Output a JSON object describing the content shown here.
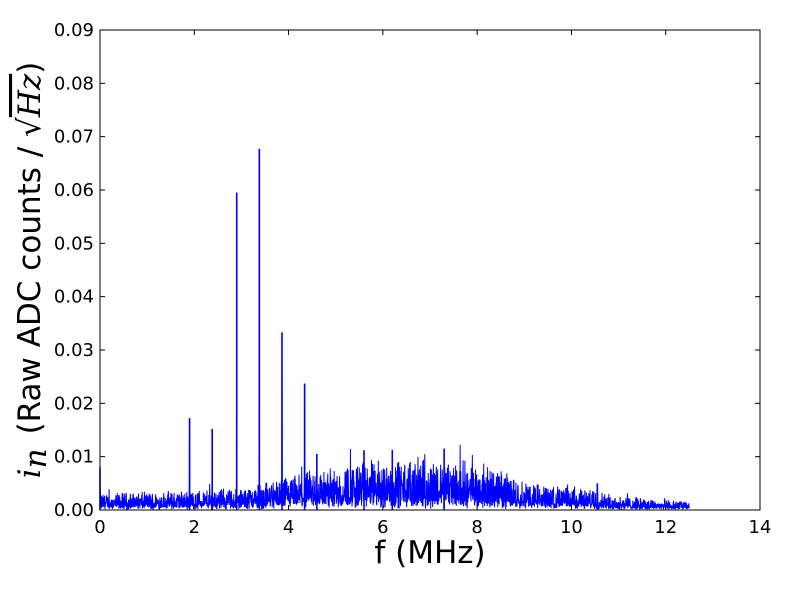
{
  "chart_data": {
    "type": "line",
    "title": "",
    "xlabel": "f (MHz)",
    "ylabel_prefix": "i",
    "ylabel_subscript": "n",
    "ylabel_text": "(Raw ADC counts / ",
    "ylabel_unit": "Hz",
    "ylabel_close": ")",
    "xlim": [
      0,
      14
    ],
    "ylim": [
      0,
      0.09
    ],
    "x_ticks": [
      "0",
      "2",
      "4",
      "6",
      "8",
      "10",
      "12",
      "14"
    ],
    "y_ticks": [
      "0.00",
      "0.01",
      "0.02",
      "0.03",
      "0.04",
      "0.05",
      "0.06",
      "0.07",
      "0.08",
      "0.09"
    ],
    "grid": false,
    "legend": "none",
    "series": [
      {
        "color": "#0000ff",
        "x_start": 0,
        "x_end": 12.5,
        "noise_envelope": [
          [
            0.0,
            0.003
          ],
          [
            0.3,
            0.003
          ],
          [
            1.0,
            0.0032
          ],
          [
            2.0,
            0.0035
          ],
          [
            3.0,
            0.004
          ],
          [
            4.0,
            0.006
          ],
          [
            5.0,
            0.008
          ],
          [
            6.0,
            0.009
          ],
          [
            7.0,
            0.009
          ],
          [
            8.0,
            0.0085
          ],
          [
            8.5,
            0.007
          ],
          [
            9.0,
            0.005
          ],
          [
            10.0,
            0.004
          ],
          [
            10.5,
            0.0035
          ],
          [
            11.0,
            0.0025
          ],
          [
            12.0,
            0.0018
          ],
          [
            12.5,
            0.0015
          ]
        ],
        "peaks": [
          {
            "x": 0.0,
            "y": 0.008
          },
          {
            "x": 1.9,
            "y": 0.0172
          },
          {
            "x": 2.38,
            "y": 0.0152
          },
          {
            "x": 2.9,
            "y": 0.0595
          },
          {
            "x": 3.38,
            "y": 0.0677
          },
          {
            "x": 3.86,
            "y": 0.0333
          },
          {
            "x": 4.34,
            "y": 0.0237
          },
          {
            "x": 4.6,
            "y": 0.0105
          },
          {
            "x": 5.6,
            "y": 0.0112
          },
          {
            "x": 6.2,
            "y": 0.0112
          },
          {
            "x": 7.3,
            "y": 0.0115
          },
          {
            "x": 10.55,
            "y": 0.005
          }
        ]
      }
    ]
  }
}
